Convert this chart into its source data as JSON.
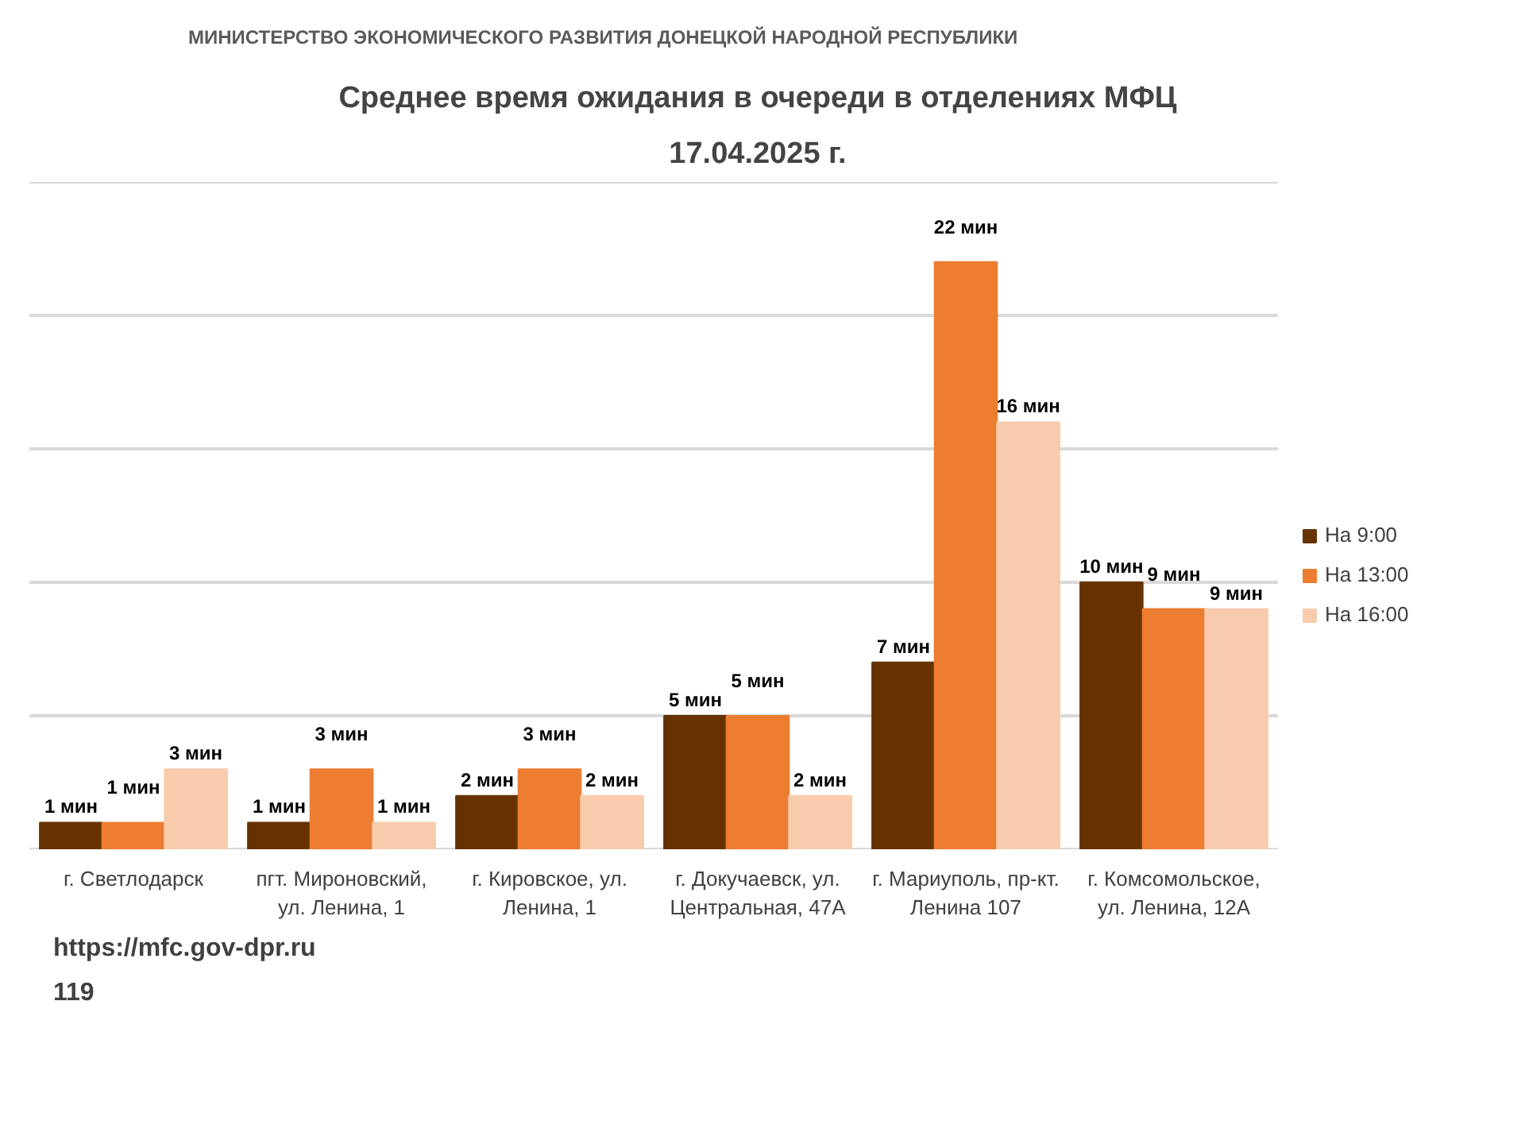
{
  "chart_data": {
    "type": "bar",
    "title": "Среднее время ожидания в очереди в отделениях МФЦ",
    "subtitle": "17.04.2025 г.",
    "categories": [
      "г. Светлодарск",
      "пгт. Мироновский, ул. Ленина, 1",
      "г. Кировское, ул. Ленина, 1",
      "г. Докучаевск, ул. Центральная, 47А",
      "г. Мариуполь, пр-кт. Ленина 107",
      "г. Комсомольское, ул. Ленина, 12А"
    ],
    "series": [
      {
        "name": "На 9:00",
        "color": "#663300",
        "values": [
          1,
          1,
          2,
          5,
          7,
          10
        ],
        "value_labels": [
          "1 мин",
          "1 мин",
          "2 мин",
          "5 мин",
          "7 мин",
          "10 мин"
        ]
      },
      {
        "name": "На 13:00",
        "color": "#ed7d31",
        "values": [
          1,
          3,
          3,
          5,
          22,
          9
        ],
        "value_labels": [
          "1 мин",
          "3 мин",
          "3 мин",
          "5 мин",
          "22 мин",
          "9 мин"
        ]
      },
      {
        "name": "На 16:00",
        "color": "#f8cbad",
        "values": [
          3,
          1,
          2,
          2,
          16,
          9
        ],
        "value_labels": [
          "3 мин",
          "1 мин",
          "2 мин",
          "2 мин",
          "16 мин",
          "9 мин"
        ]
      }
    ],
    "ylim": [
      0,
      25
    ],
    "yticks": [
      {
        "value": 0,
        "label": null
      },
      {
        "value": 5,
        "label": null
      },
      {
        "value": 10,
        "label": null
      },
      {
        "value": 15,
        "label": null
      },
      {
        "value": 20,
        "label": null
      },
      {
        "value": 25,
        "label": null
      }
    ],
    "tick_labels": "x",
    "grid": "y",
    "legend": "right",
    "annotations": [
      "МИНИСТЕРСТВО ЭКОНОМИЧЕСКОГО РАЗВИТИЯ ДОНЕЦКОЙ НАРОДНОЙ РЕСПУБЛИКИ",
      "https://mfc.gov-dpr.ru",
      "119"
    ]
  }
}
